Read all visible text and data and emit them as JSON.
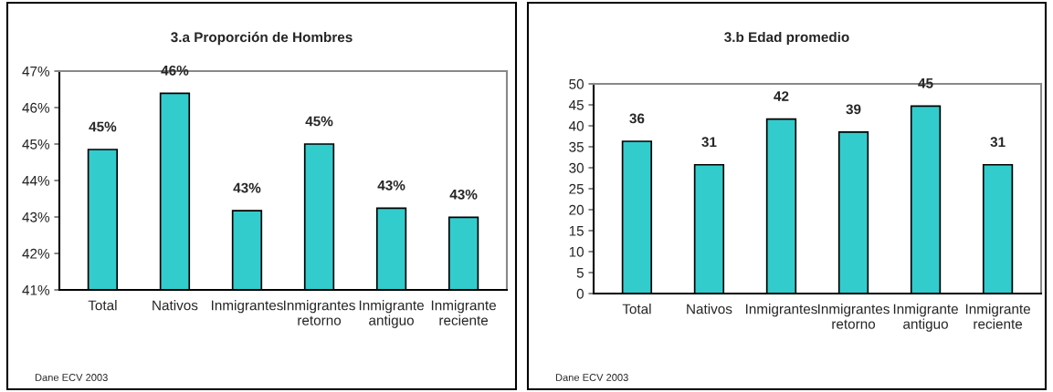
{
  "chart_data": [
    {
      "type": "bar",
      "title": "3.a Proporción de Hombres",
      "categories": [
        "Total",
        "Nativos",
        "Inmigrantes",
        "Inmigrantes\nretorno",
        "Inmigrante\nantiguo",
        "Inmigrante\nreciente"
      ],
      "values": [
        44.85,
        46.39,
        43.17,
        45.0,
        43.24,
        42.99
      ],
      "value_labels": [
        "45%",
        "46%",
        "43%",
        "45%",
        "43%",
        "43%"
      ],
      "color": "#33cccc",
      "ylim": [
        41,
        47
      ],
      "yticks": [
        {
          "value": 41,
          "label": "41%"
        },
        {
          "value": 42,
          "label": "42%"
        },
        {
          "value": 43,
          "label": "43%"
        },
        {
          "value": 44,
          "label": "44%"
        },
        {
          "value": 45,
          "label": "45%"
        },
        {
          "value": 46,
          "label": "46%"
        },
        {
          "value": 47,
          "label": "47%"
        }
      ],
      "grid": false,
      "legend": false,
      "annotations": [
        "Dane ECV 2003"
      ]
    },
    {
      "type": "bar",
      "title": "3.b Edad promedio",
      "categories": [
        "Total",
        "Nativos",
        "Inmigrantes",
        "Inmigrantes\nretorno",
        "Inmigrante\nantiguo",
        "Inmigrante\nreciente"
      ],
      "values": [
        36.3,
        30.7,
        41.6,
        38.5,
        44.7,
        30.7
      ],
      "value_labels": [
        "36",
        "31",
        "42",
        "39",
        "45",
        "31"
      ],
      "color": "#33cccc",
      "ylim": [
        0,
        50
      ],
      "yticks": [
        0,
        5,
        10,
        15,
        20,
        25,
        30,
        35,
        40,
        45,
        50
      ],
      "grid": false,
      "legend": false,
      "annotations": [
        "Dane ECV 2003"
      ]
    }
  ]
}
